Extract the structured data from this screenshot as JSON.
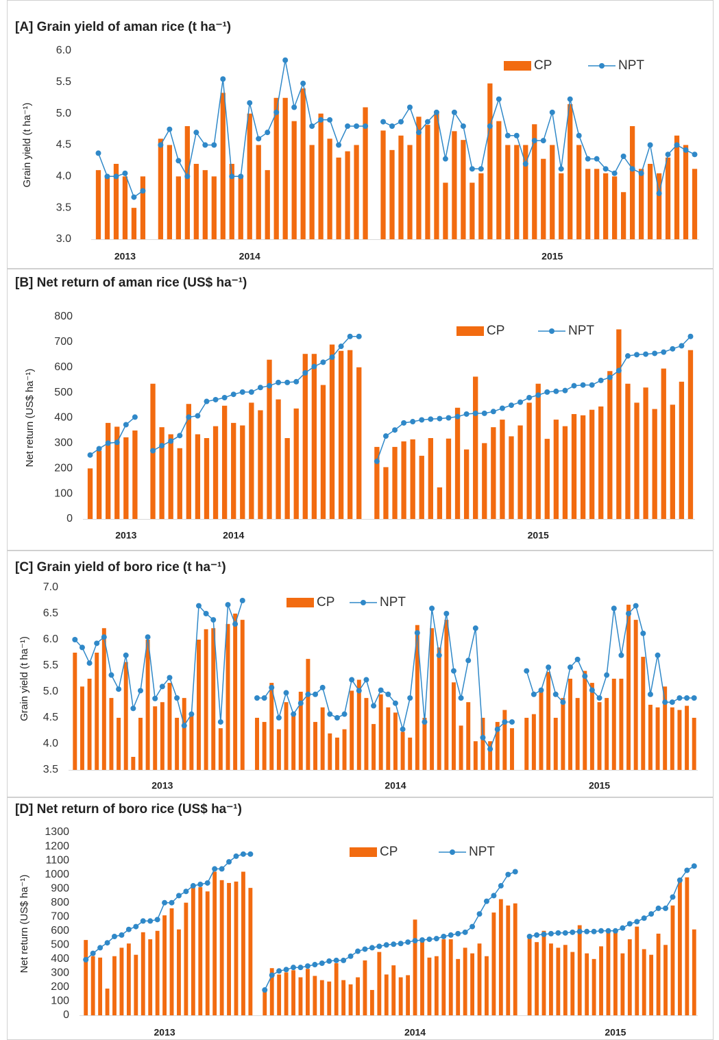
{
  "chart_data": [
    {
      "type": "combo",
      "title": "[A] Grain yield of aman rice (t ha⁻¹)",
      "y_label": "Grain yield (t ha⁻¹)",
      "grid": false,
      "legend": "top-right",
      "ylim": [
        3,
        6
      ],
      "yticks": [
        {
          "value": 3,
          "label": "3.0"
        },
        3.5,
        {
          "value": 4,
          "label": "4.0"
        },
        4.5,
        {
          "value": 5,
          "label": "5.0"
        },
        5.5,
        {
          "value": 6,
          "label": "6.0"
        }
      ],
      "categories": [
        null,
        null,
        null,
        "2013",
        null,
        null,
        null,
        null,
        null,
        null,
        null,
        null,
        null,
        null,
        null,
        null,
        null,
        "2014",
        null,
        null,
        null,
        null,
        null,
        null,
        null,
        null,
        null,
        null,
        null,
        null,
        null,
        null,
        null,
        null,
        null,
        null,
        null,
        null,
        null,
        null,
        null,
        null,
        null,
        null,
        null,
        null,
        null,
        null,
        null,
        null,
        null,
        "2015",
        null,
        null,
        null,
        null,
        null,
        null,
        null,
        null,
        null,
        null,
        null,
        null,
        null,
        null,
        null,
        null
      ],
      "series": [
        {
          "name": "CP",
          "kind": "bar",
          "color": "#f26b10",
          "values": [
            4.1,
            4.0,
            4.2,
            4.0,
            3.5,
            4.0,
            null,
            4.6,
            4.5,
            4.0,
            4.8,
            4.2,
            4.1,
            4.0,
            5.33,
            4.2,
            4.0,
            5.0,
            4.5,
            4.1,
            5.25,
            5.25,
            4.88,
            5.4,
            4.5,
            5.0,
            4.6,
            4.3,
            4.4,
            4.5,
            5.1,
            null,
            4.73,
            4.42,
            4.65,
            4.5,
            4.95,
            4.82,
            5.02,
            3.9,
            4.72,
            4.58,
            3.9,
            4.05,
            5.48,
            4.88,
            4.5,
            4.5,
            4.5,
            4.83,
            4.28,
            4.5,
            4.05,
            5.15,
            4.5,
            4.12,
            4.12,
            4.05,
            4.0,
            3.75,
            4.8,
            4.12,
            4.2,
            4.05,
            4.3,
            4.65,
            4.5,
            4.12
          ]
        },
        {
          "name": "NPT",
          "kind": "line",
          "color": "#2f88c8",
          "values": [
            4.37,
            4.0,
            4.0,
            4.05,
            3.67,
            3.77,
            null,
            4.5,
            4.75,
            4.25,
            4.0,
            4.7,
            4.5,
            4.5,
            5.55,
            4.0,
            4.0,
            5.17,
            4.6,
            4.7,
            5.02,
            5.85,
            5.1,
            5.48,
            4.8,
            4.9,
            4.9,
            4.5,
            4.8,
            4.8,
            4.8,
            null,
            4.87,
            4.8,
            4.87,
            5.1,
            4.7,
            4.87,
            5.02,
            4.28,
            5.02,
            4.8,
            4.12,
            4.12,
            4.8,
            5.23,
            4.65,
            4.65,
            4.2,
            4.57,
            4.57,
            5.02,
            4.12,
            5.23,
            4.65,
            4.28,
            4.28,
            4.12,
            4.05,
            4.32,
            4.12,
            4.05,
            4.5,
            3.73,
            4.35,
            4.5,
            4.42,
            4.35
          ]
        }
      ]
    },
    {
      "type": "combo",
      "title": "[B] Net return of aman rice (US$ ha⁻¹)",
      "y_label": "Net return (US$ ha⁻¹)",
      "grid": false,
      "legend": "top-right",
      "ylim": [
        0,
        800
      ],
      "yticks": [
        0,
        100,
        200,
        300,
        400,
        500,
        600,
        700,
        800
      ],
      "categories": [
        null,
        null,
        null,
        null,
        "2013",
        null,
        null,
        null,
        null,
        null,
        null,
        null,
        null,
        null,
        null,
        null,
        "2014",
        null,
        null,
        null,
        null,
        null,
        null,
        null,
        null,
        null,
        null,
        null,
        null,
        null,
        null,
        null,
        null,
        null,
        null,
        null,
        null,
        null,
        null,
        null,
        null,
        null,
        null,
        null,
        null,
        null,
        null,
        null,
        null,
        null,
        "2015",
        null,
        null,
        null,
        null,
        null,
        null,
        null,
        null,
        null,
        null,
        null,
        null,
        null,
        null,
        null,
        null,
        null
      ],
      "series": [
        {
          "name": "CP",
          "kind": "bar",
          "color": "#f26b10",
          "values": [
            200,
            270,
            380,
            365,
            323,
            350,
            null,
            535,
            363,
            335,
            280,
            455,
            335,
            320,
            367,
            448,
            380,
            370,
            460,
            430,
            630,
            473,
            320,
            437,
            653,
            653,
            530,
            690,
            665,
            668,
            600,
            null,
            285,
            205,
            285,
            307,
            315,
            250,
            320,
            125,
            318,
            440,
            275,
            563,
            300,
            363,
            393,
            327,
            370,
            460,
            535,
            317,
            393,
            367,
            415,
            410,
            432,
            445,
            585,
            750,
            535,
            460,
            520,
            435,
            595,
            452,
            543,
            668
          ]
        },
        {
          "name": "NPT",
          "kind": "line",
          "color": "#2f88c8",
          "values": [
            253,
            278,
            300,
            303,
            373,
            403,
            null,
            270,
            290,
            308,
            330,
            403,
            408,
            465,
            472,
            480,
            493,
            502,
            502,
            520,
            527,
            540,
            540,
            543,
            578,
            603,
            620,
            640,
            683,
            722,
            722,
            null,
            228,
            328,
            352,
            380,
            385,
            392,
            395,
            397,
            400,
            405,
            415,
            418,
            418,
            425,
            438,
            450,
            462,
            480,
            490,
            502,
            505,
            508,
            527,
            530,
            530,
            548,
            560,
            587,
            645,
            650,
            652,
            655,
            660,
            673,
            685,
            722
          ]
        }
      ]
    },
    {
      "type": "combo",
      "title": "[C] Grain yield of boro rice (t ha⁻¹)",
      "y_label": "Grain yield (t ha⁻¹)",
      "grid": false,
      "legend": "top",
      "ylim": [
        3.5,
        7
      ],
      "yticks": [
        3.5,
        {
          "value": 4,
          "label": "4.0"
        },
        4.5,
        {
          "value": 5,
          "label": "5.0"
        },
        5.5,
        {
          "value": 6,
          "label": "6.0"
        },
        6.5,
        {
          "value": 7,
          "label": "7.0"
        }
      ],
      "categories": [
        null,
        null,
        null,
        null,
        null,
        null,
        null,
        null,
        null,
        null,
        null,
        null,
        "2013",
        null,
        null,
        null,
        null,
        null,
        null,
        null,
        null,
        null,
        null,
        null,
        null,
        null,
        null,
        null,
        null,
        null,
        null,
        null,
        null,
        null,
        null,
        null,
        null,
        null,
        null,
        null,
        null,
        null,
        null,
        null,
        "2014",
        null,
        null,
        null,
        null,
        null,
        null,
        null,
        null,
        null,
        null,
        null,
        null,
        null,
        null,
        null,
        null,
        null,
        null,
        null,
        null,
        null,
        null,
        null,
        null,
        null,
        null,
        null,
        "2015",
        null,
        null,
        null,
        null,
        null,
        null,
        null,
        null,
        null,
        null,
        null,
        null,
        null
      ],
      "series": [
        {
          "name": "CP",
          "kind": "bar",
          "color": "#f26b10",
          "values": [
            5.75,
            5.1,
            5.25,
            5.75,
            6.22,
            4.88,
            4.5,
            5.57,
            3.75,
            4.5,
            6.0,
            4.72,
            4.8,
            5.17,
            4.5,
            4.88,
            4.57,
            6.0,
            6.2,
            6.22,
            4.3,
            6.3,
            6.5,
            6.38,
            null,
            4.5,
            4.42,
            5.17,
            4.28,
            4.8,
            4.57,
            5.0,
            5.63,
            4.42,
            4.7,
            4.2,
            4.12,
            4.28,
            5.02,
            5.23,
            4.88,
            4.38,
            4.95,
            4.7,
            4.6,
            4.23,
            4.12,
            6.28,
            4.5,
            6.22,
            5.85,
            6.38,
            5.18,
            4.35,
            4.8,
            4.05,
            4.5,
            4.05,
            4.42,
            4.65,
            4.3,
            null,
            4.5,
            4.57,
            5.0,
            5.38,
            4.5,
            4.88,
            5.25,
            4.88,
            5.4,
            5.17,
            4.8,
            4.88,
            5.25,
            5.25,
            6.67,
            6.38,
            5.67,
            4.75,
            4.7,
            5.1,
            4.7,
            4.65,
            4.73,
            4.5
          ]
        },
        {
          "name": "NPT",
          "kind": "line",
          "color": "#2f88c8",
          "values": [
            6.0,
            5.85,
            5.55,
            5.93,
            6.05,
            5.32,
            5.05,
            5.7,
            4.68,
            5.02,
            6.05,
            4.87,
            5.1,
            5.27,
            4.88,
            4.35,
            4.57,
            6.65,
            6.5,
            6.38,
            4.42,
            6.67,
            6.3,
            6.75,
            null,
            4.88,
            4.88,
            5.08,
            4.5,
            4.98,
            4.57,
            4.78,
            4.95,
            4.95,
            5.08,
            4.57,
            4.5,
            4.57,
            5.23,
            5.02,
            5.23,
            4.73,
            5.03,
            4.95,
            4.78,
            4.28,
            4.88,
            6.13,
            4.42,
            6.6,
            5.7,
            6.5,
            5.4,
            4.88,
            5.6,
            6.22,
            4.12,
            3.9,
            4.28,
            4.42,
            4.42,
            null,
            5.4,
            4.95,
            5.03,
            5.47,
            4.95,
            4.8,
            5.47,
            5.62,
            5.3,
            5.03,
            4.88,
            5.32,
            6.6,
            5.7,
            6.5,
            6.65,
            6.12,
            4.95,
            5.7,
            4.8,
            4.8,
            4.88,
            4.88,
            4.88
          ]
        }
      ]
    },
    {
      "type": "combo",
      "title": "[D] Net return of boro rice (US$ ha⁻¹)",
      "y_label": "Net return (US$ ha⁻¹)",
      "grid": false,
      "legend": "top",
      "ylim": [
        0,
        1300
      ],
      "yticks": [
        0,
        100,
        200,
        300,
        400,
        500,
        600,
        700,
        800,
        900,
        1000,
        1100,
        1200,
        1300
      ],
      "categories": [
        null,
        null,
        null,
        null,
        null,
        null,
        null,
        null,
        null,
        null,
        null,
        "2013",
        null,
        null,
        null,
        null,
        null,
        null,
        null,
        null,
        null,
        null,
        null,
        null,
        null,
        null,
        null,
        null,
        null,
        null,
        null,
        null,
        null,
        null,
        null,
        null,
        null,
        null,
        null,
        null,
        null,
        null,
        null,
        null,
        null,
        null,
        "2014",
        null,
        null,
        null,
        null,
        null,
        null,
        null,
        null,
        null,
        null,
        null,
        null,
        null,
        null,
        null,
        null,
        null,
        null,
        null,
        null,
        null,
        null,
        null,
        null,
        null,
        null,
        null,
        "2015",
        null,
        null,
        null,
        null,
        null,
        null,
        null,
        null,
        null,
        null,
        null
      ],
      "series": [
        {
          "name": "CP",
          "kind": "bar",
          "color": "#f26b10",
          "values": [
            535,
            420,
            410,
            190,
            420,
            480,
            510,
            430,
            590,
            540,
            600,
            710,
            760,
            610,
            800,
            905,
            910,
            880,
            1020,
            960,
            940,
            950,
            1020,
            905,
            null,
            175,
            335,
            290,
            305,
            320,
            270,
            330,
            280,
            250,
            240,
            370,
            250,
            220,
            270,
            390,
            180,
            450,
            290,
            355,
            270,
            285,
            680,
            530,
            410,
            420,
            540,
            540,
            400,
            480,
            440,
            510,
            420,
            730,
            825,
            780,
            795,
            null,
            545,
            520,
            600,
            510,
            480,
            500,
            450,
            640,
            440,
            400,
            490,
            600,
            600,
            440,
            540,
            630,
            470,
            430,
            580,
            500,
            780,
            975,
            980,
            610
          ]
        },
        {
          "name": "NPT",
          "kind": "line",
          "color": "#2f88c8",
          "values": [
            395,
            440,
            480,
            515,
            560,
            570,
            610,
            630,
            670,
            670,
            680,
            800,
            800,
            850,
            880,
            920,
            930,
            940,
            1040,
            1040,
            1090,
            1130,
            1145,
            1145,
            null,
            180,
            285,
            315,
            325,
            340,
            340,
            350,
            360,
            370,
            385,
            390,
            390,
            420,
            455,
            470,
            480,
            490,
            500,
            505,
            510,
            520,
            530,
            535,
            540,
            545,
            560,
            570,
            580,
            590,
            630,
            720,
            810,
            850,
            920,
            1000,
            1020,
            null,
            560,
            570,
            575,
            580,
            585,
            585,
            590,
            595,
            595,
            595,
            600,
            600,
            600,
            620,
            650,
            665,
            690,
            720,
            760,
            760,
            840,
            960,
            1030,
            1060
          ]
        }
      ]
    }
  ]
}
